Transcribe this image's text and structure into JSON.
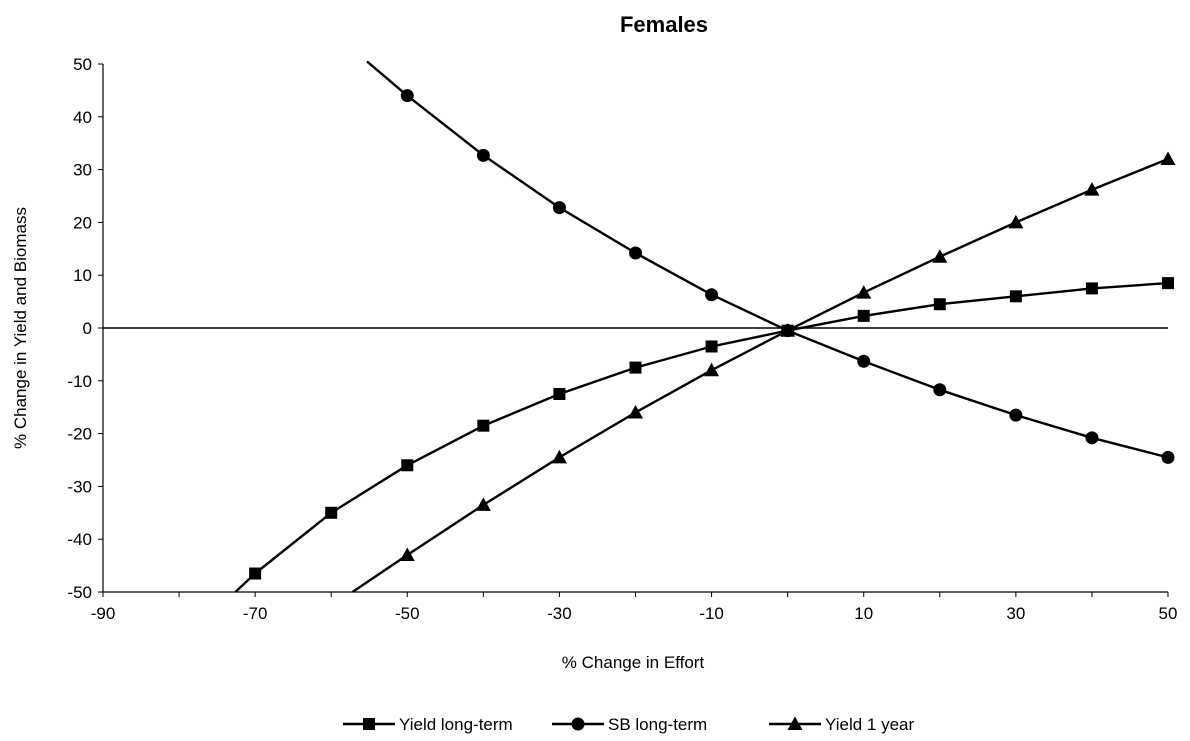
{
  "chart_data": {
    "type": "line",
    "title": "Females",
    "xlabel": "% Change in Effort",
    "ylabel": "% Change in Yield and Biomass",
    "xlim": [
      -90,
      50
    ],
    "ylim": [
      -50,
      50
    ],
    "xticks": [
      -90,
      -70,
      -50,
      -30,
      -10,
      10,
      30,
      50
    ],
    "yticks": [
      50,
      40,
      30,
      20,
      10,
      0,
      -10,
      -20,
      -30,
      -40,
      -50
    ],
    "grid": false,
    "legend_position": "bottom",
    "series": [
      {
        "name": "Yield long-term",
        "marker": "square",
        "x": [
          -70,
          -60,
          -50,
          -40,
          -30,
          -20,
          -10,
          0,
          10,
          20,
          30,
          40,
          50
        ],
        "y": [
          -46.5,
          -35,
          -26,
          -18.5,
          -12.5,
          -7.5,
          -3.5,
          -0.5,
          2.3,
          4.5,
          6,
          7.5,
          8.5
        ],
        "line_extension": {
          "x": -72.6,
          "y": -50
        }
      },
      {
        "name": "SB long-term",
        "marker": "circle",
        "x": [
          -50,
          -40,
          -30,
          -20,
          -10,
          0,
          10,
          20,
          30,
          40,
          50
        ],
        "y": [
          44,
          32.7,
          22.8,
          14.2,
          6.3,
          -0.5,
          -6.3,
          -11.7,
          -16.5,
          -20.8,
          -24.5
        ],
        "line_extension": {
          "x": -55.3,
          "y": 50.5
        }
      },
      {
        "name": "Yield 1 year",
        "marker": "triangle",
        "x": [
          -50,
          -40,
          -30,
          -20,
          -10,
          0,
          10,
          20,
          30,
          40,
          50
        ],
        "y": [
          -43,
          -33.5,
          -24.5,
          -16,
          -8,
          -0.5,
          6.7,
          13.5,
          20,
          26.2,
          32
        ],
        "line_extension": {
          "x": -57.2,
          "y": -50
        }
      }
    ]
  }
}
